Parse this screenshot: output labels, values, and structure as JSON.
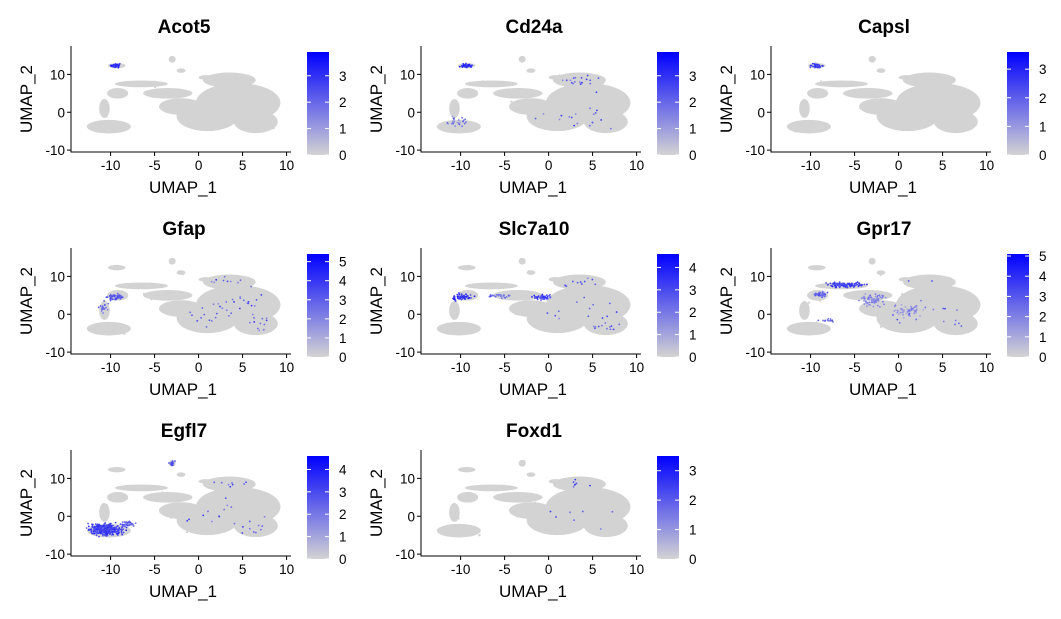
{
  "chart_data": {
    "type": "scatter",
    "layout": {
      "columns": 3,
      "rows": 3
    },
    "xlabel": "UMAP_1",
    "ylabel": "UMAP_2",
    "xlim": [
      -14.5,
      10.5
    ],
    "ylim": [
      -10.5,
      17.5
    ],
    "x_ticks": [
      {
        "value": -10,
        "label": "-10"
      },
      {
        "value": -5,
        "label": "-5"
      },
      {
        "value": 0,
        "label": "0"
      },
      {
        "value": 5,
        "label": "5"
      },
      {
        "value": 10,
        "label": "10"
      }
    ],
    "y_ticks": [
      {
        "value": -10,
        "label": "-10"
      },
      {
        "value": 0,
        "label": "0"
      },
      {
        "value": 10,
        "label": "10"
      }
    ],
    "colors": {
      "low": "#d3d3d3",
      "high": "#0000ff"
    },
    "grid": false,
    "legend": "right (continuous color bar per panel)",
    "panels": [
      {
        "gene": "Acot5",
        "scale_max": 3.9,
        "scale_ticks": [
          {
            "value": 0,
            "label": "0"
          },
          {
            "value": 1,
            "label": "1"
          },
          {
            "value": 2,
            "label": "2"
          },
          {
            "value": 3,
            "label": "3"
          }
        ],
        "hotspots": [
          {
            "x": -9.3,
            "y": 12.3,
            "rx": 1.0,
            "ry": 0.7,
            "n": 40,
            "level": 0.75
          }
        ],
        "sparse": 0
      },
      {
        "gene": "Cd24a",
        "scale_max": 3.9,
        "scale_ticks": [
          {
            "value": 0,
            "label": "0"
          },
          {
            "value": 1,
            "label": "1"
          },
          {
            "value": 2,
            "label": "2"
          },
          {
            "value": 3,
            "label": "3"
          }
        ],
        "hotspots": [
          {
            "x": -9.3,
            "y": 12.3,
            "rx": 1.0,
            "ry": 0.7,
            "n": 40,
            "level": 0.8
          },
          {
            "x": -10.5,
            "y": -2.5,
            "rx": 1.5,
            "ry": 2.0,
            "n": 25,
            "level": 0.45
          }
        ],
        "sparse": 35
      },
      {
        "gene": "Capsl",
        "scale_max": 3.6,
        "scale_ticks": [
          {
            "value": 0,
            "label": "0"
          },
          {
            "value": 1,
            "label": "1"
          },
          {
            "value": 2,
            "label": "2"
          },
          {
            "value": 3,
            "label": "3"
          }
        ],
        "hotspots": [
          {
            "x": -9.3,
            "y": 12.3,
            "rx": 1.0,
            "ry": 0.7,
            "n": 35,
            "level": 0.7
          }
        ],
        "sparse": 0
      },
      {
        "gene": "Gfap",
        "scale_max": 5.4,
        "scale_ticks": [
          {
            "value": 0,
            "label": "0"
          },
          {
            "value": 1,
            "label": "1"
          },
          {
            "value": 2,
            "label": "2"
          },
          {
            "value": 3,
            "label": "3"
          },
          {
            "value": 4,
            "label": "4"
          },
          {
            "value": 5,
            "label": "5"
          }
        ],
        "hotspots": [
          {
            "x": -9.5,
            "y": 4.5,
            "rx": 1.5,
            "ry": 1.2,
            "n": 45,
            "level": 0.6
          },
          {
            "x": -10.8,
            "y": 1.5,
            "rx": 0.7,
            "ry": 2.5,
            "n": 20,
            "level": 0.5
          }
        ],
        "sparse": 55
      },
      {
        "gene": "Slc7a10",
        "scale_max": 4.6,
        "scale_ticks": [
          {
            "value": 0,
            "label": "0"
          },
          {
            "value": 1,
            "label": "1"
          },
          {
            "value": 2,
            "label": "2"
          },
          {
            "value": 3,
            "label": "3"
          },
          {
            "value": 4,
            "label": "4"
          }
        ],
        "hotspots": [
          {
            "x": -9.8,
            "y": 4.5,
            "rx": 1.6,
            "ry": 1.3,
            "n": 60,
            "level": 0.75
          },
          {
            "x": -0.8,
            "y": 4.5,
            "rx": 1.8,
            "ry": 1.0,
            "n": 45,
            "level": 0.7
          },
          {
            "x": -5.5,
            "y": 4.8,
            "rx": 2.5,
            "ry": 0.8,
            "n": 25,
            "level": 0.5
          }
        ],
        "sparse": 35
      },
      {
        "gene": "Gpr17",
        "scale_max": 5.1,
        "scale_ticks": [
          {
            "value": 0,
            "label": "0"
          },
          {
            "value": 1,
            "label": "1"
          },
          {
            "value": 2,
            "label": "2"
          },
          {
            "value": 3,
            "label": "3"
          },
          {
            "value": 4,
            "label": "4"
          },
          {
            "value": 5,
            "label": "5"
          }
        ],
        "hotspots": [
          {
            "x": -6.0,
            "y": 7.8,
            "rx": 3.0,
            "ry": 0.9,
            "n": 110,
            "level": 0.7
          },
          {
            "x": -8.8,
            "y": 5.2,
            "rx": 1.0,
            "ry": 1.5,
            "n": 35,
            "level": 0.55
          },
          {
            "x": -3.0,
            "y": 4.0,
            "rx": 2.0,
            "ry": 2.5,
            "n": 80,
            "level": 0.35
          },
          {
            "x": 1.0,
            "y": 1.0,
            "rx": 2.5,
            "ry": 2.5,
            "n": 60,
            "level": 0.3
          },
          {
            "x": -8.0,
            "y": -1.5,
            "rx": 1.5,
            "ry": 1.0,
            "n": 15,
            "level": 0.45
          }
        ],
        "sparse": 20
      },
      {
        "gene": "Egfl7",
        "scale_max": 4.6,
        "scale_ticks": [
          {
            "value": 0,
            "label": "0"
          },
          {
            "value": 1,
            "label": "1"
          },
          {
            "value": 2,
            "label": "2"
          },
          {
            "value": 3,
            "label": "3"
          },
          {
            "value": 4,
            "label": "4"
          }
        ],
        "hotspots": [
          {
            "x": -10.5,
            "y": -3.6,
            "rx": 2.8,
            "ry": 2.2,
            "n": 320,
            "level": 0.7
          },
          {
            "x": -8.0,
            "y": -2.0,
            "rx": 1.0,
            "ry": 1.0,
            "n": 40,
            "level": 0.55
          },
          {
            "x": -3.0,
            "y": 14.0,
            "rx": 0.5,
            "ry": 1.0,
            "n": 15,
            "level": 0.6
          }
        ],
        "sparse": 30
      },
      {
        "gene": "Foxd1",
        "scale_max": 3.5,
        "scale_ticks": [
          {
            "value": 0,
            "label": "0"
          },
          {
            "value": 1,
            "label": "1"
          },
          {
            "value": 2,
            "label": "2"
          },
          {
            "value": 3,
            "label": "3"
          }
        ],
        "hotspots": [],
        "sparse": 15
      }
    ]
  }
}
